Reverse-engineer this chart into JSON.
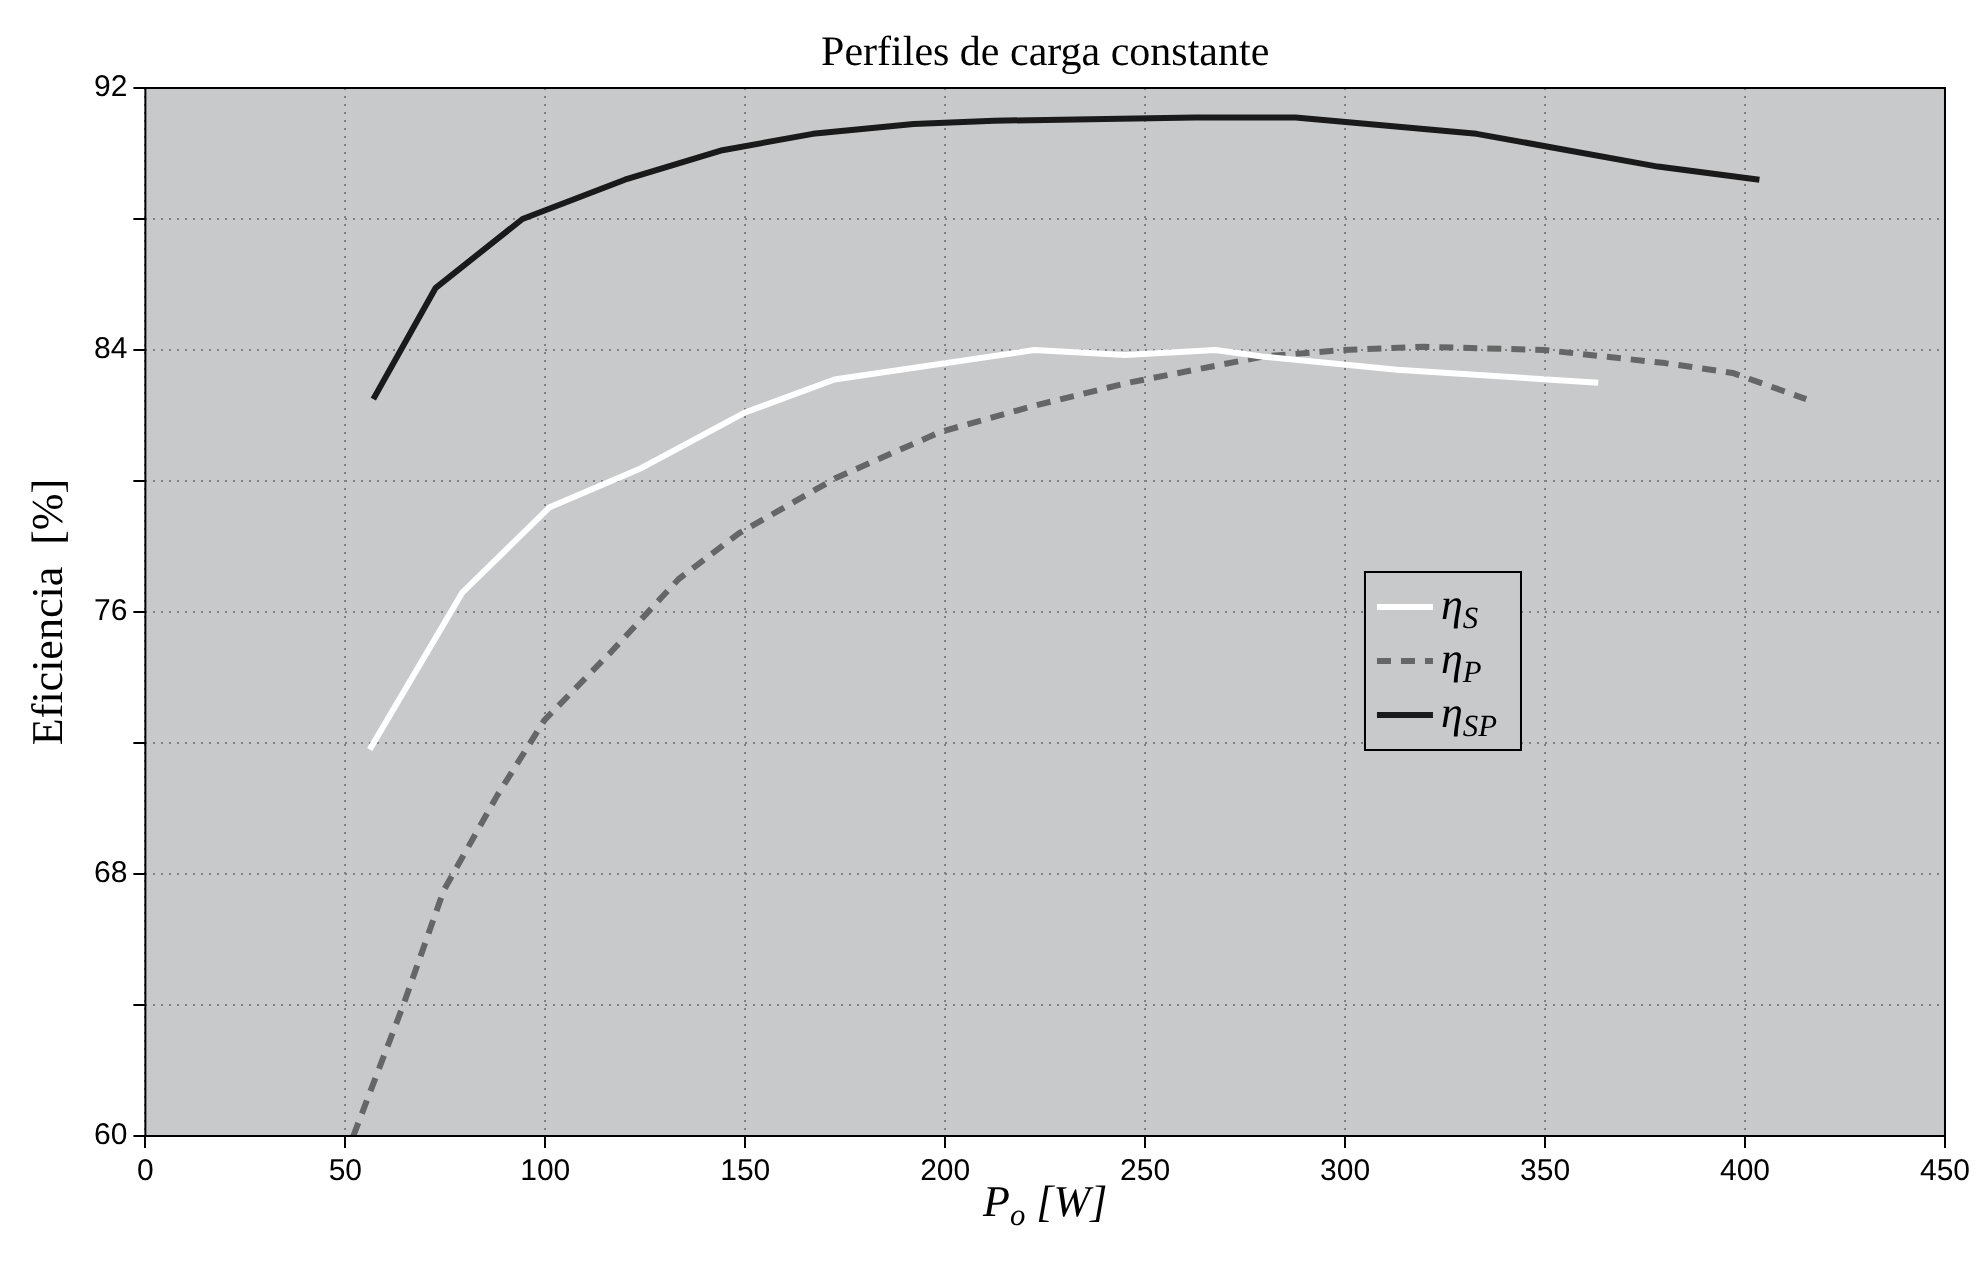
{
  "chart_data": {
    "type": "line",
    "title": "Perfiles de carga constante",
    "xlabel": "P$_{o}$ [W]",
    "ylabel": "Eficiencia  [%]",
    "xlim": [
      0,
      450
    ],
    "xticks": [
      0,
      50,
      100,
      150,
      200,
      250,
      300,
      350,
      400,
      450
    ],
    "ylim": [
      60,
      92
    ],
    "yticks": [
      60,
      {
        "value": 64,
        "label": null
      },
      68,
      {
        "value": 72,
        "label": null
      },
      76,
      {
        "value": 80,
        "label": null
      },
      84,
      {
        "value": 88,
        "label": null
      },
      92
    ],
    "grid": true,
    "legend": "right",
    "marker": "none",
    "series": [
      {
        "name": "η$_{S}$",
        "color": "#ffffff",
        "line_style": "solid",
        "x": [
          56.1,
          79.3,
          101.1,
          124.1,
          150.1,
          172.3,
          222.3,
          245,
          267.6,
          279.2,
          313,
          363.3
        ],
        "values": [
          71.8,
          76.6,
          79.2,
          80.4,
          82.1,
          83.1,
          84.0,
          83.85,
          84.0,
          83.8,
          83.4,
          83.0
        ]
      },
      {
        "name": "η$_{P}$",
        "color": "#666666",
        "line_style": "dashed",
        "x": [
          52,
          64.5,
          74.6,
          88,
          99.8,
          116.6,
          133.3,
          148.4,
          172.8,
          198.8,
          222.3,
          245.8,
          279.4,
          299.5,
          319.6,
          349.8,
          380,
          396.9,
          415.3
        ],
        "values": [
          60.0,
          64.0,
          67.5,
          70.4,
          72.7,
          74.8,
          77.0,
          78.4,
          80.1,
          81.5,
          82.3,
          83.0,
          83.8,
          84.0,
          84.1,
          84.0,
          83.6,
          83.3,
          82.5
        ]
      },
      {
        "name": "η$_{SP}$",
        "color": "#1a1a1a",
        "line_style": "solid",
        "x": [
          57,
          72.6,
          94.3,
          119.9,
          144.3,
          166.9,
          192.1,
          212.2,
          262.5,
          287.6,
          332.9,
          378.2,
          403.6
        ],
        "values": [
          82.5,
          85.9,
          88.0,
          89.2,
          90.1,
          90.6,
          90.9,
          91.0,
          91.1,
          91.1,
          90.6,
          89.6,
          89.2
        ]
      }
    ]
  }
}
